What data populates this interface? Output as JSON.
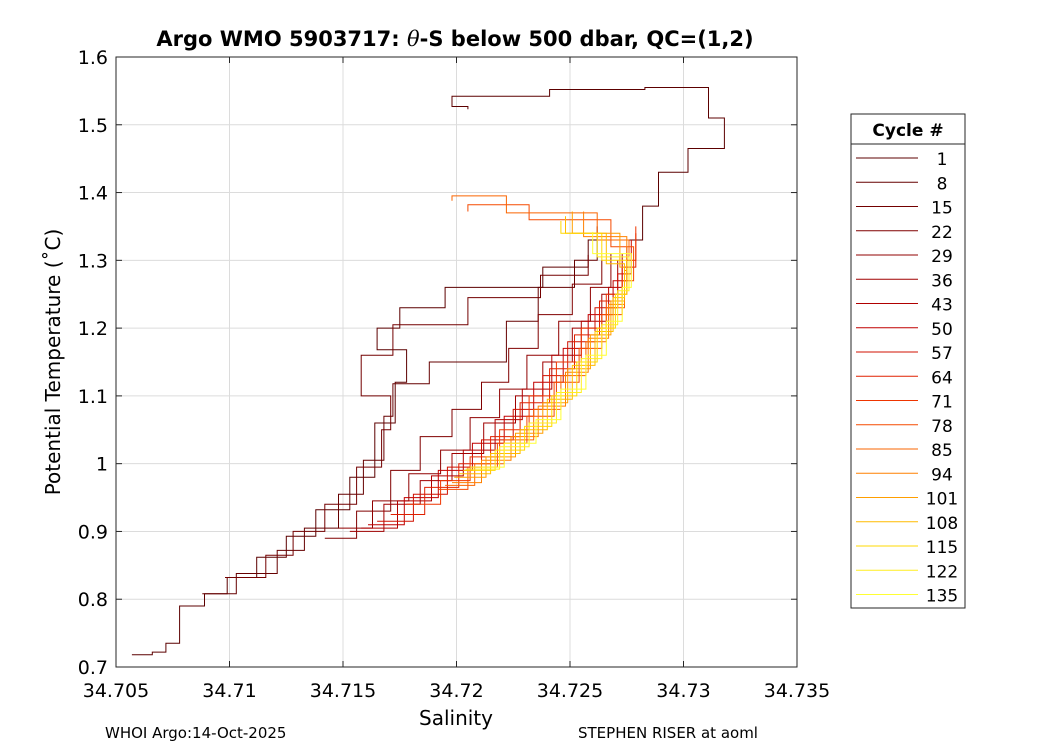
{
  "chart_data": {
    "type": "line",
    "title_prefix": "Argo WMO 5903717: ",
    "title_symbol": "θ",
    "title_suffix": "-S below 500 dbar,  QC=(1,2)",
    "xlabel": "Salinity",
    "ylabel": "Potential Temperature (˚C)",
    "xlim": [
      34.705,
      34.735
    ],
    "ylim": [
      0.7,
      1.6
    ],
    "xticks": [
      34.705,
      34.71,
      34.715,
      34.72,
      34.725,
      34.73,
      34.735
    ],
    "xtick_labels": [
      "34.705",
      "34.71",
      "34.715",
      "34.72",
      "34.725",
      "34.73",
      "34.735"
    ],
    "yticks": [
      0.7,
      0.8,
      0.9,
      1.0,
      1.1,
      1.2,
      1.3,
      1.4,
      1.5,
      1.6
    ],
    "ytick_labels": [
      "0.7",
      "0.8",
      "0.9",
      "1",
      "1.1",
      "1.2",
      "1.3",
      "1.4",
      "1.5",
      "1.6"
    ],
    "grid": true,
    "legend_title": "Cycle #",
    "legend_position": "right-outside",
    "colormap": [
      "#5a0000",
      "#8b0000",
      "#c80000",
      "#ff3000",
      "#ff8800",
      "#ffcc00",
      "#ffff40"
    ],
    "series": [
      {
        "name": "1",
        "color": "#5c0000",
        "points": [
          [
            34.7057,
            0.718
          ],
          [
            34.7066,
            0.722
          ],
          [
            34.7072,
            0.735
          ],
          [
            34.7078,
            0.79
          ],
          [
            34.7089,
            0.808
          ],
          [
            34.7099,
            0.832
          ],
          [
            34.7112,
            0.862
          ],
          [
            34.7125,
            0.893
          ],
          [
            34.7138,
            0.932
          ],
          [
            34.7153,
            0.98
          ],
          [
            34.7164,
            1.06
          ],
          [
            34.7173,
            1.12
          ],
          [
            34.7178,
            1.168
          ],
          [
            34.7165,
            1.2
          ],
          [
            34.7175,
            1.23
          ],
          [
            34.7195,
            1.26
          ],
          [
            34.7238,
            1.29
          ],
          [
            34.7258,
            1.33
          ],
          [
            34.7282,
            1.38
          ],
          [
            34.7289,
            1.43
          ],
          [
            34.7302,
            1.465
          ],
          [
            34.7318,
            1.51
          ],
          [
            34.7311,
            1.555
          ],
          [
            34.7283,
            1.552
          ],
          [
            34.7241,
            1.542
          ],
          [
            34.7198,
            1.527
          ],
          [
            34.7205,
            1.523
          ]
        ]
      },
      {
        "name": "8",
        "color": "#660000",
        "points": [
          [
            34.7088,
            0.808
          ],
          [
            34.7103,
            0.838
          ],
          [
            34.7121,
            0.872
          ],
          [
            34.7133,
            0.905
          ],
          [
            34.7148,
            0.955
          ],
          [
            34.7159,
            1.005
          ],
          [
            34.7168,
            1.07
          ],
          [
            34.7172,
            1.118
          ],
          [
            34.7188,
            1.15
          ],
          [
            34.7222,
            1.21
          ],
          [
            34.7236,
            1.26
          ],
          [
            34.7252,
            1.3
          ],
          [
            34.7262,
            1.35
          ]
        ]
      },
      {
        "name": "15",
        "color": "#730000",
        "points": [
          [
            34.7098,
            0.832
          ],
          [
            34.7116,
            0.865
          ],
          [
            34.7128,
            0.9
          ],
          [
            34.7142,
            0.94
          ],
          [
            34.7156,
            0.995
          ],
          [
            34.7167,
            1.05
          ],
          [
            34.7171,
            1.1
          ],
          [
            34.7158,
            1.16
          ],
          [
            34.7172,
            1.205
          ],
          [
            34.7205,
            1.245
          ],
          [
            34.7237,
            1.278
          ],
          [
            34.7258,
            1.308
          ]
        ]
      },
      {
        "name": "22",
        "color": "#800000",
        "points": [
          [
            34.7142,
            0.89
          ],
          [
            34.7156,
            0.93
          ],
          [
            34.7171,
            0.99
          ],
          [
            34.7184,
            1.04
          ],
          [
            34.7198,
            1.08
          ],
          [
            34.7211,
            1.12
          ],
          [
            34.7223,
            1.17
          ],
          [
            34.7236,
            1.22
          ],
          [
            34.7251,
            1.265
          ],
          [
            34.7264,
            1.3
          ]
        ]
      },
      {
        "name": "29",
        "color": "#900000",
        "points": [
          [
            34.7148,
            0.905
          ],
          [
            34.7163,
            0.945
          ],
          [
            34.7179,
            0.985
          ],
          [
            34.7193,
            1.02
          ],
          [
            34.7206,
            1.068
          ],
          [
            34.7219,
            1.11
          ],
          [
            34.7231,
            1.16
          ],
          [
            34.7245,
            1.21
          ],
          [
            34.7259,
            1.26
          ],
          [
            34.7268,
            1.31
          ]
        ]
      },
      {
        "name": "36",
        "color": "#a00000",
        "points": [
          [
            34.7153,
            0.9
          ],
          [
            34.7168,
            0.94
          ],
          [
            34.7184,
            0.975
          ],
          [
            34.7198,
            1.015
          ],
          [
            34.7212,
            1.06
          ],
          [
            34.7226,
            1.1
          ],
          [
            34.7238,
            1.15
          ],
          [
            34.7251,
            1.2
          ],
          [
            34.7264,
            1.25
          ],
          [
            34.7271,
            1.3
          ]
        ]
      },
      {
        "name": "43",
        "color": "#b00000",
        "points": [
          [
            34.7158,
            0.905
          ],
          [
            34.7174,
            0.945
          ],
          [
            34.7189,
            0.982
          ],
          [
            34.7203,
            1.02
          ],
          [
            34.7217,
            1.065
          ],
          [
            34.7229,
            1.11
          ],
          [
            34.7242,
            1.16
          ],
          [
            34.7255,
            1.21
          ],
          [
            34.7267,
            1.26
          ],
          [
            34.7273,
            1.31
          ]
        ]
      },
      {
        "name": "50",
        "color": "#c00000",
        "points": [
          [
            34.7161,
            0.91
          ],
          [
            34.7177,
            0.95
          ],
          [
            34.7192,
            0.99
          ],
          [
            34.7207,
            1.03
          ],
          [
            34.7221,
            1.07
          ],
          [
            34.7234,
            1.12
          ],
          [
            34.7247,
            1.17
          ],
          [
            34.7258,
            1.22
          ],
          [
            34.7269,
            1.27
          ],
          [
            34.7275,
            1.32
          ]
        ]
      },
      {
        "name": "57",
        "color": "#d01000",
        "points": [
          [
            34.7165,
            0.915
          ],
          [
            34.7181,
            0.955
          ],
          [
            34.7196,
            0.995
          ],
          [
            34.7211,
            1.035
          ],
          [
            34.7225,
            1.08
          ],
          [
            34.7238,
            1.13
          ],
          [
            34.7249,
            1.18
          ],
          [
            34.7261,
            1.23
          ],
          [
            34.7271,
            1.28
          ],
          [
            34.7277,
            1.33
          ]
        ]
      },
      {
        "name": "64",
        "color": "#e02000",
        "points": [
          [
            34.7171,
            0.925
          ],
          [
            34.7186,
            0.965
          ],
          [
            34.7201,
            1.0
          ],
          [
            34.7215,
            1.04
          ],
          [
            34.7228,
            1.09
          ],
          [
            34.7241,
            1.14
          ],
          [
            34.7252,
            1.19
          ],
          [
            34.7263,
            1.24
          ],
          [
            34.7273,
            1.29
          ],
          [
            34.7279,
            1.34
          ]
        ]
      },
      {
        "name": "71",
        "color": "#ee3500",
        "points": [
          [
            34.7178,
            0.94
          ],
          [
            34.7193,
            0.975
          ],
          [
            34.7206,
            1.01
          ],
          [
            34.7219,
            1.05
          ],
          [
            34.7232,
            1.1
          ],
          [
            34.7244,
            1.15
          ],
          [
            34.7255,
            1.2
          ],
          [
            34.7266,
            1.25
          ],
          [
            34.7275,
            1.3
          ],
          [
            34.7279,
            1.35
          ]
        ]
      },
      {
        "name": "78",
        "color": "#f54a00",
        "points": [
          [
            34.7192,
            0.962
          ],
          [
            34.7205,
            0.995
          ],
          [
            34.7218,
            1.03
          ],
          [
            34.7231,
            1.07
          ],
          [
            34.7243,
            1.12
          ],
          [
            34.7254,
            1.17
          ],
          [
            34.7264,
            1.22
          ],
          [
            34.7273,
            1.27
          ],
          [
            34.7278,
            1.32
          ],
          [
            34.7268,
            1.36
          ],
          [
            34.7232,
            1.382
          ],
          [
            34.7205,
            1.372
          ]
        ]
      },
      {
        "name": "85",
        "color": "#fa6500",
        "points": [
          [
            34.7195,
            0.968
          ],
          [
            34.7208,
            1.0
          ],
          [
            34.7221,
            1.035
          ],
          [
            34.7234,
            1.08
          ],
          [
            34.7246,
            1.13
          ],
          [
            34.7257,
            1.18
          ],
          [
            34.7266,
            1.23
          ],
          [
            34.7274,
            1.28
          ],
          [
            34.7276,
            1.33
          ],
          [
            34.7262,
            1.37
          ],
          [
            34.7222,
            1.395
          ],
          [
            34.7198,
            1.388
          ]
        ]
      },
      {
        "name": "94",
        "color": "#ff8000",
        "points": [
          [
            34.7198,
            0.972
          ],
          [
            34.7211,
            1.005
          ],
          [
            34.7224,
            1.04
          ],
          [
            34.7236,
            1.085
          ],
          [
            34.7248,
            1.135
          ],
          [
            34.7258,
            1.185
          ],
          [
            34.7267,
            1.235
          ],
          [
            34.7274,
            1.285
          ],
          [
            34.7275,
            1.335
          ],
          [
            34.7256,
            1.372
          ]
        ]
      },
      {
        "name": "101",
        "color": "#ff9e00",
        "points": [
          [
            34.7199,
            0.98
          ],
          [
            34.7213,
            1.01
          ],
          [
            34.7226,
            1.045
          ],
          [
            34.7238,
            1.09
          ],
          [
            34.7249,
            1.14
          ],
          [
            34.7259,
            1.19
          ],
          [
            34.7268,
            1.24
          ],
          [
            34.7274,
            1.29
          ],
          [
            34.7272,
            1.34
          ],
          [
            34.7251,
            1.372
          ]
        ]
      },
      {
        "name": "108",
        "color": "#ffbc00",
        "points": [
          [
            34.7201,
            0.985
          ],
          [
            34.7215,
            1.015
          ],
          [
            34.7228,
            1.05
          ],
          [
            34.724,
            1.095
          ],
          [
            34.7251,
            1.145
          ],
          [
            34.7261,
            1.195
          ],
          [
            34.7269,
            1.245
          ],
          [
            34.7274,
            1.295
          ],
          [
            34.7266,
            1.34
          ],
          [
            34.7248,
            1.365
          ]
        ]
      },
      {
        "name": "115",
        "color": "#ffd800",
        "points": [
          [
            34.7203,
            0.99
          ],
          [
            34.7217,
            1.02
          ],
          [
            34.723,
            1.055
          ],
          [
            34.7242,
            1.1
          ],
          [
            34.7253,
            1.15
          ],
          [
            34.7262,
            1.2
          ],
          [
            34.727,
            1.25
          ],
          [
            34.7275,
            1.3
          ],
          [
            34.7264,
            1.34
          ],
          [
            34.7246,
            1.358
          ]
        ]
      },
      {
        "name": "122",
        "color": "#ffee20",
        "points": [
          [
            34.7204,
            0.992
          ],
          [
            34.7219,
            1.025
          ],
          [
            34.7232,
            1.06
          ],
          [
            34.7244,
            1.105
          ],
          [
            34.7255,
            1.155
          ],
          [
            34.7264,
            1.205
          ],
          [
            34.7271,
            1.255
          ],
          [
            34.7276,
            1.305
          ],
          [
            34.7262,
            1.34
          ]
        ]
      },
      {
        "name": "135",
        "color": "#ffff33",
        "points": [
          [
            34.7206,
            0.995
          ],
          [
            34.7221,
            1.03
          ],
          [
            34.7235,
            1.065
          ],
          [
            34.7246,
            1.11
          ],
          [
            34.7257,
            1.16
          ],
          [
            34.7266,
            1.21
          ],
          [
            34.7273,
            1.26
          ],
          [
            34.7277,
            1.31
          ],
          [
            34.726,
            1.342
          ]
        ]
      }
    ]
  },
  "footer": {
    "left": "WHOI Argo:14-Oct-2025",
    "right": "STEPHEN RISER at aoml"
  }
}
